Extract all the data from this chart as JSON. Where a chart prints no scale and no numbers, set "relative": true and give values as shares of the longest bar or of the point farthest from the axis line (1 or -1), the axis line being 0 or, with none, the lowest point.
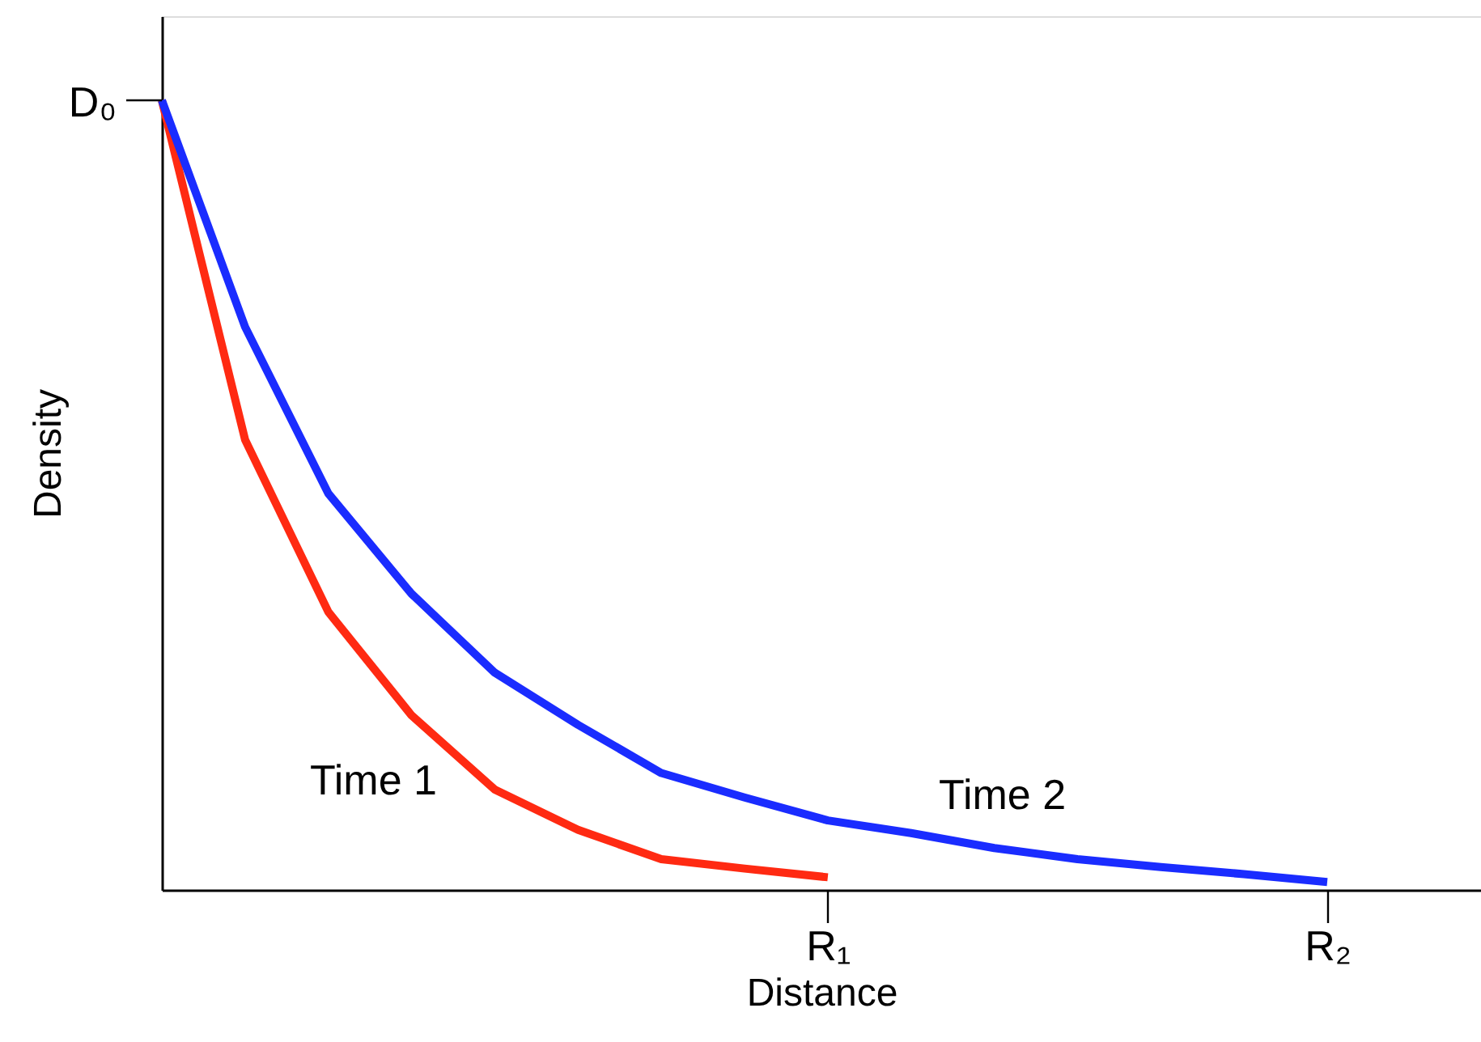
{
  "chart_data": {
    "type": "line",
    "relative": true,
    "xlabel": "Distance",
    "ylabel": "Density",
    "annotations": [
      "D₀"
    ],
    "categories": [
      null,
      null,
      null,
      null,
      null,
      null,
      null,
      null,
      "R₁",
      null,
      null,
      null,
      null,
      null,
      "R₂"
    ],
    "marker": "none",
    "line_style": "solid",
    "series": [
      {
        "name": "Time 1",
        "color": "#ff2a12",
        "values": [
          1,
          0.57,
          0.352,
          0.221,
          0.127,
          0.076,
          0.039,
          0.027,
          0.016,
          null,
          null,
          null,
          null,
          null,
          null
        ]
      },
      {
        "name": "Time 2",
        "color": "#1a2cff",
        "values": [
          1,
          0.713,
          0.502,
          0.375,
          0.275,
          0.209,
          0.148,
          0.117,
          0.088,
          0.072,
          0.053,
          0.039,
          0.029,
          0.02,
          0.01
        ]
      }
    ]
  }
}
